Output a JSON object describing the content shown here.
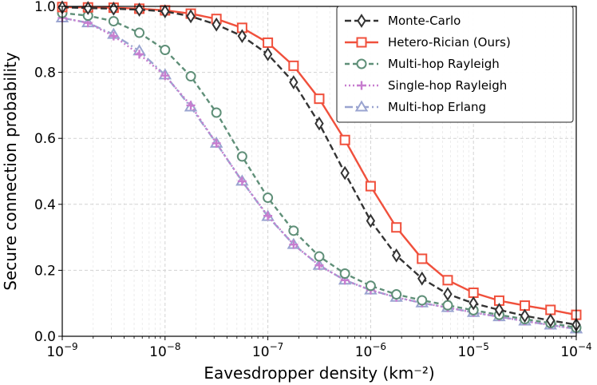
{
  "chart_data": {
    "type": "line",
    "xlabel": "Eavesdropper density (km⁻²)",
    "ylabel": "Secure connection probability",
    "xscale": "log",
    "xlim": [
      1e-09,
      0.0001
    ],
    "ylim": [
      0.0,
      1.0
    ],
    "x_ticks": [
      {
        "value": 1e-09,
        "base": "10",
        "exp": "−9"
      },
      {
        "value": 1e-08,
        "base": "10",
        "exp": "−8"
      },
      {
        "value": 1e-07,
        "base": "10",
        "exp": "−7"
      },
      {
        "value": 1e-06,
        "base": "10",
        "exp": "−6"
      },
      {
        "value": 1e-05,
        "base": "10",
        "exp": "−5"
      },
      {
        "value": 0.0001,
        "base": "10",
        "exp": "−4"
      }
    ],
    "y_ticks": [
      {
        "value": 0.0,
        "label": "0.0"
      },
      {
        "value": 0.2,
        "label": "0.2"
      },
      {
        "value": 0.4,
        "label": "0.4"
      },
      {
        "value": 0.6,
        "label": "0.6"
      },
      {
        "value": 0.8,
        "label": "0.8"
      },
      {
        "value": 1.0,
        "label": "1.0"
      }
    ],
    "grid": true,
    "legend_position": "top-right",
    "x": [
      1e-09,
      1.78e-09,
      3.16e-09,
      5.62e-09,
      1e-08,
      1.78e-08,
      3.16e-08,
      5.62e-08,
      1e-07,
      1.78e-07,
      3.16e-07,
      5.62e-07,
      1e-06,
      1.78e-06,
      3.16e-06,
      5.62e-06,
      1e-05,
      1.78e-05,
      3.16e-05,
      5.62e-05,
      0.0001
    ],
    "series": [
      {
        "name": "Monte-Carlo",
        "color": "#333333",
        "dash": "8,4",
        "marker": "diamond",
        "values": [
          0.997,
          0.995,
          0.993,
          0.99,
          0.985,
          0.97,
          0.945,
          0.91,
          0.855,
          0.77,
          0.645,
          0.495,
          0.35,
          0.245,
          0.175,
          0.128,
          0.1,
          0.08,
          0.062,
          0.048,
          0.035
        ]
      },
      {
        "name": "Hetero-Rician (Ours)",
        "color": "#f0503c",
        "dash": "",
        "marker": "square",
        "values": [
          0.998,
          0.997,
          0.996,
          0.993,
          0.988,
          0.978,
          0.962,
          0.935,
          0.89,
          0.82,
          0.72,
          0.595,
          0.455,
          0.33,
          0.235,
          0.17,
          0.132,
          0.108,
          0.093,
          0.08,
          0.065
        ]
      },
      {
        "name": "Multi-hop Rayleigh",
        "color": "#5f8f78",
        "dash": "6,4",
        "marker": "circle",
        "values": [
          0.98,
          0.972,
          0.955,
          0.92,
          0.868,
          0.788,
          0.678,
          0.545,
          0.42,
          0.32,
          0.242,
          0.19,
          0.153,
          0.127,
          0.109,
          0.094,
          0.079,
          0.065,
          0.052,
          0.04,
          0.026
        ]
      },
      {
        "name": "Single-hop Rayleigh",
        "color": "#c77dcf",
        "dash": "2,3",
        "marker": "plus",
        "values": [
          0.965,
          0.95,
          0.91,
          0.855,
          0.79,
          0.7,
          0.585,
          0.47,
          0.365,
          0.278,
          0.215,
          0.17,
          0.14,
          0.118,
          0.101,
          0.087,
          0.072,
          0.059,
          0.046,
          0.034,
          0.022
        ]
      },
      {
        "name": "Multi-hop Erlang",
        "color": "#9aa4d0",
        "dash": "10,4,2,4",
        "marker": "triangle",
        "values": [
          0.965,
          0.95,
          0.915,
          0.865,
          0.792,
          0.695,
          0.585,
          0.47,
          0.363,
          0.278,
          0.215,
          0.17,
          0.14,
          0.118,
          0.101,
          0.087,
          0.072,
          0.059,
          0.046,
          0.034,
          0.022
        ]
      }
    ]
  }
}
